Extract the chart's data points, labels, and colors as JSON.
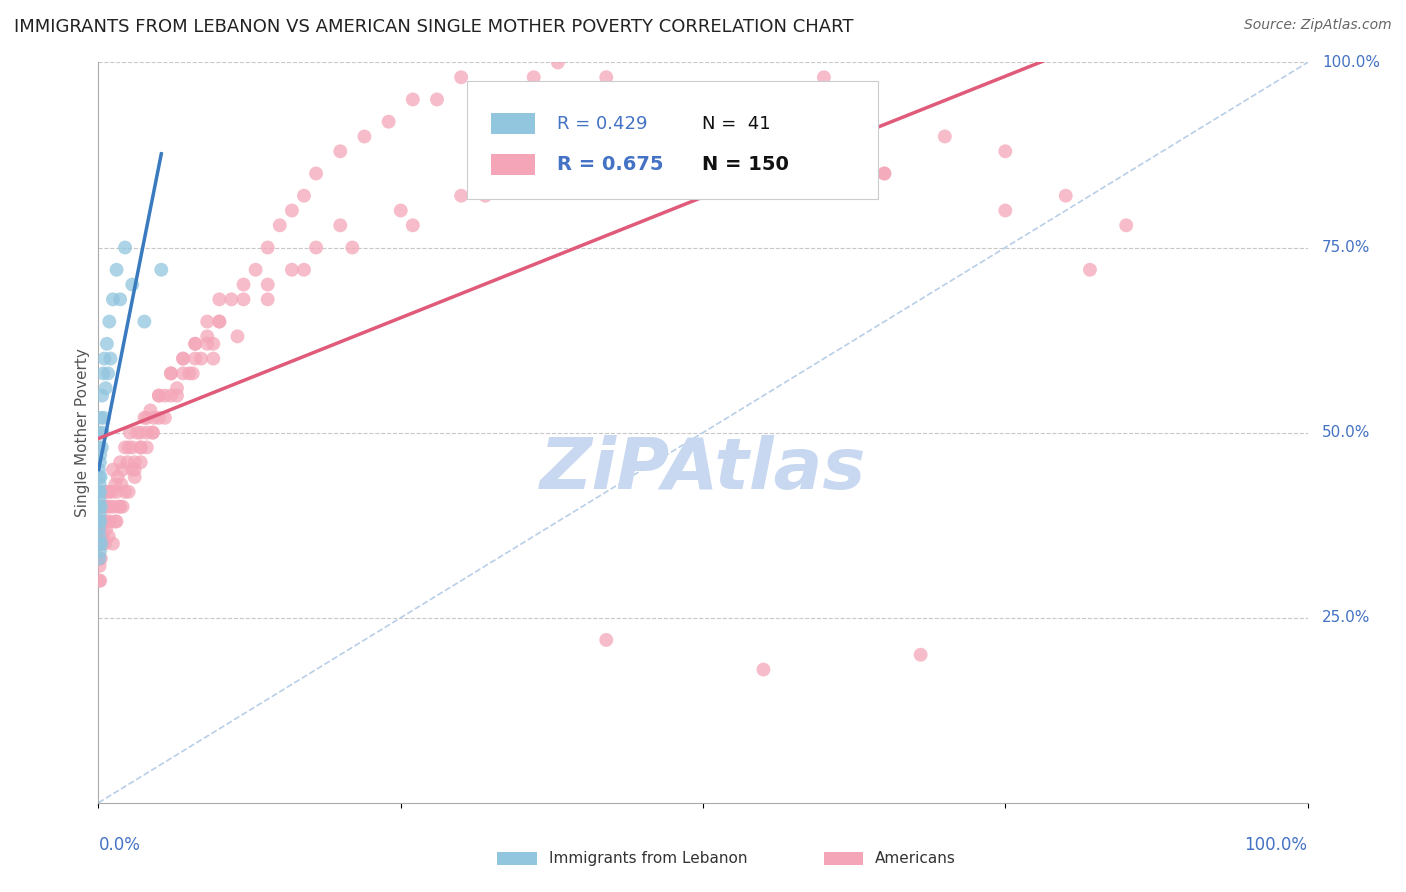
{
  "title": "IMMIGRANTS FROM LEBANON VS AMERICAN SINGLE MOTHER POVERTY CORRELATION CHART",
  "source": "Source: ZipAtlas.com",
  "ylabel": "Single Mother Poverty",
  "ylabel_right_labels": [
    "100.0%",
    "75.0%",
    "50.0%",
    "25.0%"
  ],
  "ylabel_right_positions": [
    1.0,
    0.75,
    0.5,
    0.25
  ],
  "blue_color": "#92c5de",
  "pink_color": "#f4a6b8",
  "blue_line_color": "#3a7abf",
  "pink_line_color": "#e05a7a",
  "diag_line_color": "#b8cfe8",
  "grid_color": "#c8c8c8",
  "title_color": "#222222",
  "source_color": "#666666",
  "axis_label_color": "#4472C4",
  "watermark_color": "#c8d8f0",
  "blue_r": 0.429,
  "blue_n": 41,
  "pink_r": 0.675,
  "pink_n": 150,
  "blue_scatter_x": [
    0.0002,
    0.0003,
    0.0004,
    0.0004,
    0.0005,
    0.0005,
    0.0006,
    0.0006,
    0.0007,
    0.0008,
    0.0009,
    0.001,
    0.001,
    0.0011,
    0.0012,
    0.0013,
    0.0014,
    0.0015,
    0.0016,
    0.0018,
    0.002,
    0.0022,
    0.0025,
    0.0028,
    0.003,
    0.0035,
    0.004,
    0.0045,
    0.005,
    0.006,
    0.007,
    0.008,
    0.009,
    0.01,
    0.012,
    0.015,
    0.018,
    0.022,
    0.028,
    0.038,
    0.052
  ],
  "blue_scatter_y": [
    0.38,
    0.42,
    0.35,
    0.45,
    0.4,
    0.48,
    0.37,
    0.44,
    0.5,
    0.33,
    0.41,
    0.36,
    0.43,
    0.39,
    0.46,
    0.34,
    0.42,
    0.47,
    0.38,
    0.44,
    0.52,
    0.4,
    0.35,
    0.48,
    0.55,
    0.5,
    0.58,
    0.52,
    0.6,
    0.56,
    0.62,
    0.58,
    0.65,
    0.6,
    0.68,
    0.72,
    0.68,
    0.75,
    0.7,
    0.65,
    0.72
  ],
  "pink_scatter_x": [
    0.0005,
    0.0008,
    0.001,
    0.0012,
    0.0015,
    0.0018,
    0.002,
    0.0022,
    0.0025,
    0.0028,
    0.003,
    0.0035,
    0.0038,
    0.004,
    0.0045,
    0.005,
    0.0055,
    0.006,
    0.0065,
    0.007,
    0.0075,
    0.008,
    0.0085,
    0.009,
    0.0095,
    0.01,
    0.011,
    0.012,
    0.013,
    0.014,
    0.015,
    0.016,
    0.017,
    0.018,
    0.019,
    0.02,
    0.022,
    0.024,
    0.026,
    0.028,
    0.03,
    0.032,
    0.035,
    0.038,
    0.04,
    0.043,
    0.046,
    0.05,
    0.055,
    0.06,
    0.065,
    0.07,
    0.075,
    0.08,
    0.085,
    0.09,
    0.095,
    0.1,
    0.11,
    0.12,
    0.13,
    0.14,
    0.15,
    0.16,
    0.17,
    0.18,
    0.2,
    0.22,
    0.24,
    0.26,
    0.28,
    0.3,
    0.32,
    0.34,
    0.36,
    0.38,
    0.4,
    0.42,
    0.45,
    0.48,
    0.5,
    0.55,
    0.6,
    0.65,
    0.7,
    0.75,
    0.8,
    0.85,
    0.025,
    0.03,
    0.035,
    0.04,
    0.05,
    0.06,
    0.07,
    0.08,
    0.09,
    0.1,
    0.015,
    0.02,
    0.025,
    0.03,
    0.035,
    0.04,
    0.045,
    0.05,
    0.06,
    0.07,
    0.08,
    0.09,
    0.1,
    0.12,
    0.14,
    0.16,
    0.18,
    0.2,
    0.25,
    0.3,
    0.35,
    0.4,
    0.45,
    0.5,
    0.55,
    0.6,
    0.012,
    0.014,
    0.018,
    0.022,
    0.028,
    0.035,
    0.045,
    0.055,
    0.065,
    0.078,
    0.095,
    0.115,
    0.14,
    0.17,
    0.21,
    0.26,
    0.32,
    0.39,
    0.47,
    0.56,
    0.65,
    0.75,
    0.82,
    0.42,
    0.55,
    0.68
  ],
  "pink_scatter_y": [
    0.3,
    0.33,
    0.32,
    0.35,
    0.3,
    0.37,
    0.33,
    0.38,
    0.35,
    0.4,
    0.36,
    0.38,
    0.4,
    0.36,
    0.42,
    0.38,
    0.35,
    0.4,
    0.37,
    0.42,
    0.38,
    0.4,
    0.36,
    0.42,
    0.38,
    0.4,
    0.42,
    0.45,
    0.4,
    0.43,
    0.42,
    0.44,
    0.4,
    0.46,
    0.43,
    0.45,
    0.48,
    0.46,
    0.5,
    0.48,
    0.45,
    0.5,
    0.48,
    0.52,
    0.5,
    0.53,
    0.52,
    0.55,
    0.55,
    0.58,
    0.56,
    0.6,
    0.58,
    0.62,
    0.6,
    0.63,
    0.62,
    0.65,
    0.68,
    0.7,
    0.72,
    0.75,
    0.78,
    0.8,
    0.82,
    0.85,
    0.88,
    0.9,
    0.92,
    0.95,
    0.95,
    0.98,
    0.95,
    0.92,
    0.98,
    1.0,
    0.95,
    0.98,
    0.85,
    0.88,
    0.9,
    0.92,
    0.88,
    0.85,
    0.9,
    0.88,
    0.82,
    0.78,
    0.48,
    0.46,
    0.5,
    0.52,
    0.55,
    0.58,
    0.6,
    0.62,
    0.65,
    0.68,
    0.38,
    0.4,
    0.42,
    0.44,
    0.46,
    0.48,
    0.5,
    0.52,
    0.55,
    0.58,
    0.6,
    0.62,
    0.65,
    0.68,
    0.7,
    0.72,
    0.75,
    0.78,
    0.8,
    0.82,
    0.85,
    0.88,
    0.9,
    0.92,
    0.95,
    0.98,
    0.35,
    0.38,
    0.4,
    0.42,
    0.45,
    0.48,
    0.5,
    0.52,
    0.55,
    0.58,
    0.6,
    0.63,
    0.68,
    0.72,
    0.75,
    0.78,
    0.82,
    0.85,
    0.88,
    0.9,
    0.85,
    0.8,
    0.72,
    0.22,
    0.18,
    0.2
  ]
}
